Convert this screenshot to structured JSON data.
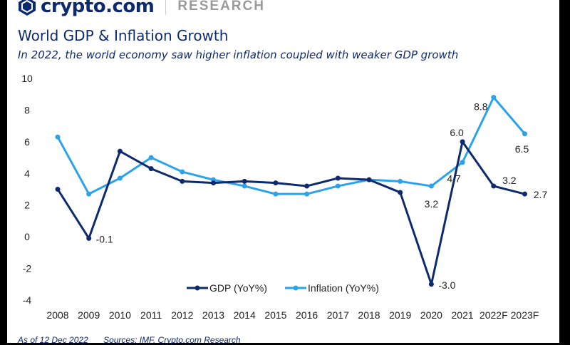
{
  "header": {
    "brand": "crypto.com",
    "section": "RESEARCH"
  },
  "title": "World GDP & Inflation Growth",
  "subtitle": "In 2022, the world economy saw higher inflation coupled with weaker GDP growth",
  "footer": {
    "as_of": "As of 12 Dec 2022",
    "sources": "Sources: IMF, Crypto.com Research"
  },
  "colors": {
    "gdp": "#0d2a6e",
    "inflation": "#2aa3ea",
    "text": "#0d2a6e"
  },
  "chart_data": {
    "type": "line",
    "categories": [
      "2008",
      "2009",
      "2010",
      "2011",
      "2012",
      "2013",
      "2014",
      "2015",
      "2016",
      "2017",
      "2018",
      "2019",
      "2020",
      "2021",
      "2022F",
      "2023F"
    ],
    "ylim": [
      -4,
      10
    ],
    "yticks": [
      -4,
      -2,
      0,
      2,
      4,
      6,
      8,
      10
    ],
    "grid": false,
    "legend": "bottom-center",
    "series": [
      {
        "name": "GDP (YoY%)",
        "values": [
          3.0,
          -0.1,
          5.4,
          4.3,
          3.5,
          3.4,
          3.5,
          3.4,
          3.2,
          3.7,
          3.6,
          2.8,
          -3.0,
          6.0,
          3.2,
          2.7
        ],
        "labels": {
          "1": "-0.1",
          "12": "-3.0",
          "13": "6.0",
          "14": "3.2",
          "15": "2.7"
        }
      },
      {
        "name": "Inflation (YoY%)",
        "values": [
          6.3,
          2.7,
          3.7,
          5.0,
          4.1,
          3.6,
          3.2,
          2.7,
          2.7,
          3.2,
          3.6,
          3.5,
          3.2,
          4.7,
          8.8,
          6.5
        ],
        "labels": {
          "12": "3.2",
          "13": "4.7",
          "14": "8.8",
          "15": "6.5"
        }
      }
    ]
  }
}
